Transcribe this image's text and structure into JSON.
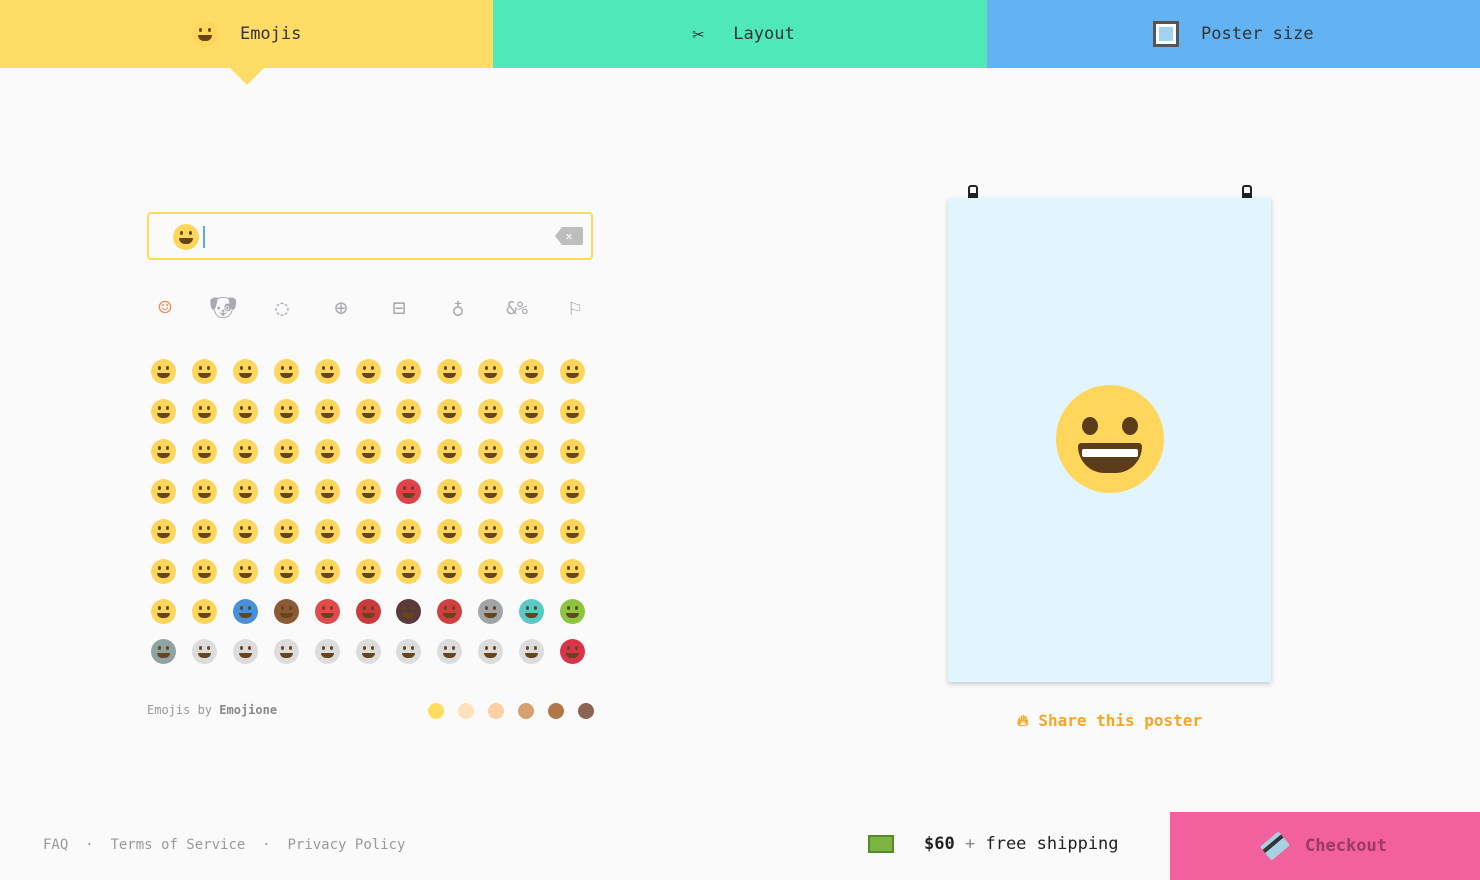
{
  "tabs": [
    {
      "label": "Emojis",
      "icon": "grinning-emoji-icon",
      "color": "#ffdc66"
    },
    {
      "label": "Layout",
      "icon": "scissors-icon",
      "color": "#4fe8b9"
    },
    {
      "label": "Poster size",
      "icon": "framed-picture-icon",
      "color": "#63b3f2"
    }
  ],
  "search": {
    "value": "",
    "selected_emoji": "grinning"
  },
  "categories": [
    "smileys",
    "animals",
    "food",
    "activity",
    "travel",
    "objects",
    "symbols",
    "flags"
  ],
  "active_category": "smileys",
  "emojis": [
    [
      "grinning",
      "grimacing",
      "grin",
      "joy",
      "smiley",
      "smile",
      "sweat-smile",
      "laughing",
      "innocent",
      "wink",
      "blush"
    ],
    [
      "slight-smile",
      "upside-down",
      "relaxed",
      "yum",
      "relieved",
      "heart-eyes",
      "kissing-heart",
      "kissing",
      "kissing-smiling-eyes",
      "kissing-closed-eyes",
      "stuck-out-tongue-winking-eye"
    ],
    [
      "stuck-out-tongue-closed-eyes",
      "stuck-out-tongue",
      "money-mouth",
      "nerd",
      "sunglasses",
      "hugging",
      "smirk",
      "no-mouth",
      "neutral",
      "expressionless",
      "unamused"
    ],
    [
      "rolling-eyes",
      "thinking",
      "flushed",
      "disappointed",
      "worried",
      "angry",
      "rage",
      "pensive",
      "confused",
      "slight-frown",
      "frowning2"
    ],
    [
      "persevere",
      "confounded",
      "tired-face",
      "weary",
      "triumph",
      "open-mouth",
      "scream",
      "fearful",
      "cold-sweat",
      "hushed",
      "frowning"
    ],
    [
      "anguished",
      "cry",
      "disappointed-relieved",
      "sleepy",
      "sweat",
      "sob",
      "dizzy-face",
      "astonished",
      "zipper-mouth",
      "mask",
      "thermometer-face"
    ],
    [
      "head-bandage",
      "sleeping",
      "zzz",
      "poop",
      "smiling-imp",
      "imp",
      "japanese-ogre",
      "japanese-goblin",
      "skull",
      "ghost",
      "alien"
    ],
    [
      "robot",
      "smiley-cat",
      "smile-cat",
      "joy-cat",
      "heart-eyes-cat",
      "smirk-cat",
      "kissing-cat",
      "scream-cat",
      "crying-cat",
      "pouting-cat",
      "lips"
    ]
  ],
  "emoji_colors": {
    "default": "#ffd65c",
    "rage": "#e0434b",
    "zzz": "#4a90d9",
    "poop": "#8d5a36",
    "smiling-imp": "#e04b4b",
    "imp": "#cc3b3b",
    "japanese-ogre": "#5a3a3a",
    "japanese-goblin": "#d04040",
    "skull": "#a0a6a8",
    "ghost": "#5bc8c8",
    "alien": "#8cc63f",
    "robot": "#8fa3a3",
    "cat": "#dcdcdc",
    "lips": "#d8354a"
  },
  "credit": {
    "prefix": "Emojis by",
    "brand": "Emojione"
  },
  "skin_tones": [
    "#ffdc5e",
    "#ffe1bb",
    "#ffcfa5",
    "#d6a06f",
    "#b07848",
    "#8d6452"
  ],
  "selected_skin_tone": 0,
  "poster": {
    "background": "#e0f5fd",
    "emoji": "grinning"
  },
  "share": {
    "icon": "fire-icon",
    "label": "Share this poster"
  },
  "footer": {
    "links": [
      "FAQ",
      "Terms of Service",
      "Privacy Policy"
    ],
    "separator": "·"
  },
  "price": {
    "amount": "$60",
    "plus": "+",
    "shipping": "free shipping"
  },
  "checkout": {
    "label": "Checkout",
    "color": "#f2609e"
  }
}
